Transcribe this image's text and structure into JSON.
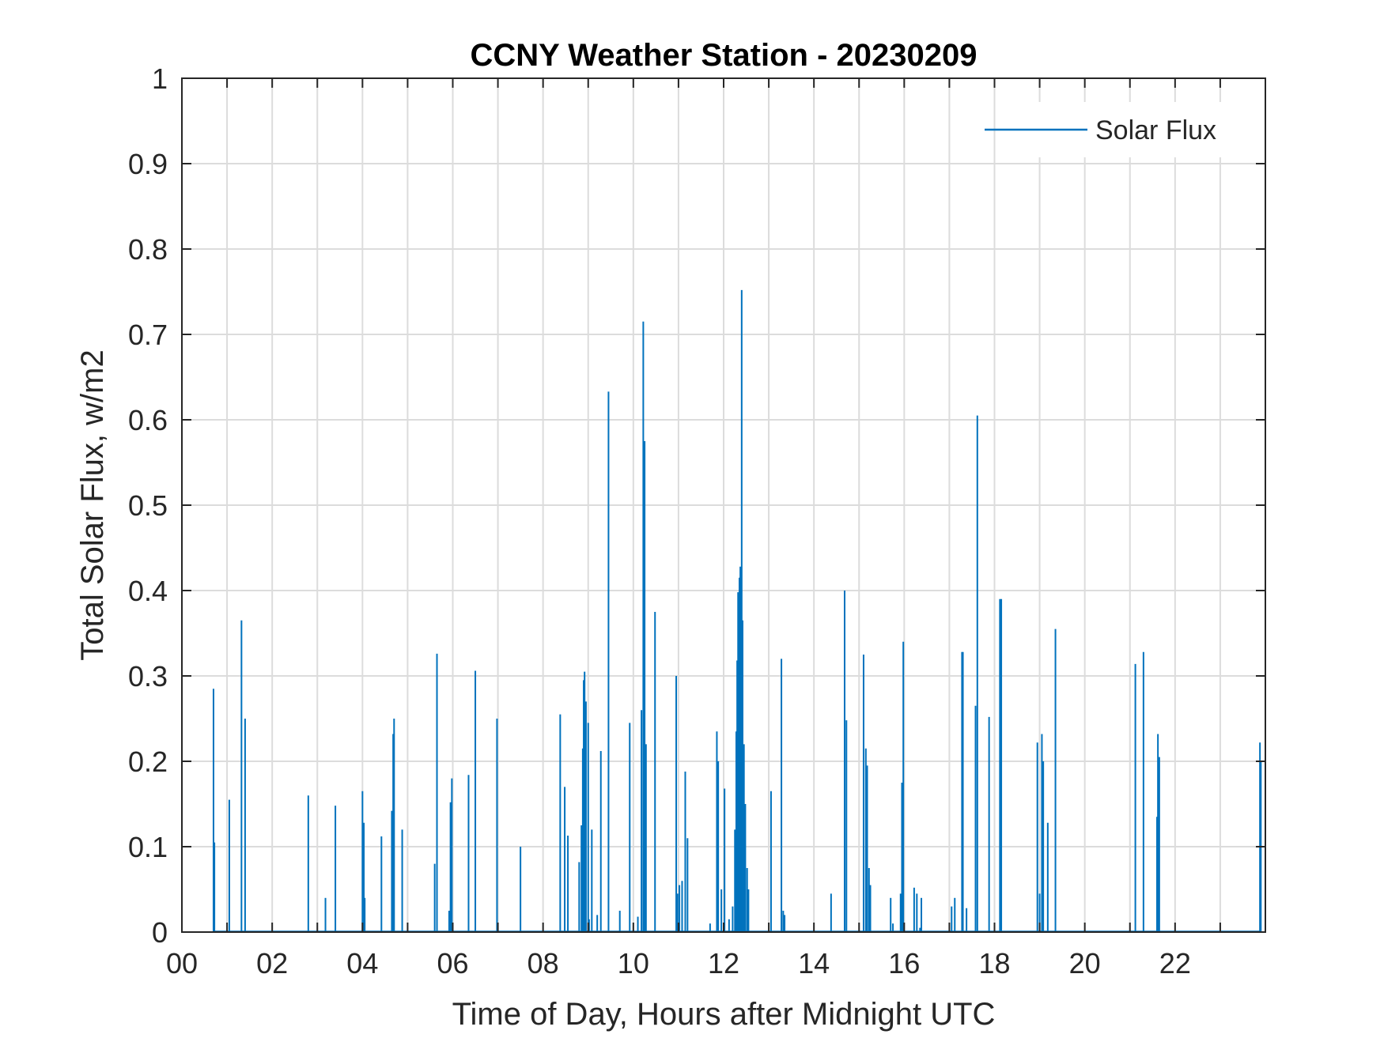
{
  "chart_data": {
    "type": "line",
    "title": "CCNY Weather Station - 20230209",
    "xlabel": "Time of Day, Hours after Midnight UTC",
    "ylabel": "Total Solar Flux, w/m2",
    "xlim": [
      0,
      24
    ],
    "ylim": [
      0,
      1
    ],
    "grid": true,
    "legend_position": "top-right",
    "x_ticks": [
      0,
      2,
      4,
      6,
      8,
      10,
      12,
      14,
      16,
      18,
      20,
      22
    ],
    "x_tick_labels": [
      "00",
      "02",
      "04",
      "06",
      "08",
      "10",
      "12",
      "14",
      "16",
      "18",
      "20",
      "22"
    ],
    "y_ticks": [
      0,
      0.1,
      0.2,
      0.3,
      0.4,
      0.5,
      0.6,
      0.7,
      0.8,
      0.9,
      1
    ],
    "y_tick_labels": [
      "0",
      "0.1",
      "0.2",
      "0.3",
      "0.4",
      "0.5",
      "0.6",
      "0.7",
      "0.8",
      "0.9",
      "1"
    ],
    "series": [
      {
        "name": "Solar Flux",
        "color": "#0072BD",
        "spikes": [
          [
            0.7,
            0.285
          ],
          [
            0.72,
            0.105
          ],
          [
            1.05,
            0.155
          ],
          [
            1.32,
            0.365
          ],
          [
            1.4,
            0.25
          ],
          [
            2.8,
            0.16
          ],
          [
            3.18,
            0.04
          ],
          [
            3.4,
            0.148
          ],
          [
            4.0,
            0.165
          ],
          [
            4.03,
            0.128
          ],
          [
            4.05,
            0.04
          ],
          [
            4.42,
            0.112
          ],
          [
            4.65,
            0.142
          ],
          [
            4.68,
            0.232
          ],
          [
            4.7,
            0.25
          ],
          [
            4.88,
            0.12
          ],
          [
            5.6,
            0.08
          ],
          [
            5.65,
            0.326
          ],
          [
            5.92,
            0.025
          ],
          [
            5.95,
            0.152
          ],
          [
            5.98,
            0.18
          ],
          [
            6.35,
            0.184
          ],
          [
            6.5,
            0.306
          ],
          [
            6.98,
            0.25
          ],
          [
            7.5,
            0.1
          ],
          [
            8.38,
            0.255
          ],
          [
            8.48,
            0.17
          ],
          [
            8.55,
            0.113
          ],
          [
            8.8,
            0.082
          ],
          [
            8.85,
            0.125
          ],
          [
            8.88,
            0.215
          ],
          [
            8.9,
            0.295
          ],
          [
            8.92,
            0.305
          ],
          [
            8.95,
            0.27
          ],
          [
            9.0,
            0.245
          ],
          [
            9.02,
            0.015
          ],
          [
            9.08,
            0.12
          ],
          [
            9.2,
            0.02
          ],
          [
            9.28,
            0.212
          ],
          [
            9.45,
            0.633
          ],
          [
            9.7,
            0.025
          ],
          [
            9.92,
            0.245
          ],
          [
            10.1,
            0.018
          ],
          [
            10.18,
            0.26
          ],
          [
            10.22,
            0.715
          ],
          [
            10.25,
            0.575
          ],
          [
            10.28,
            0.22
          ],
          [
            10.48,
            0.375
          ],
          [
            10.95,
            0.3
          ],
          [
            10.98,
            0.045
          ],
          [
            11.02,
            0.055
          ],
          [
            11.08,
            0.06
          ],
          [
            11.15,
            0.188
          ],
          [
            11.2,
            0.11
          ],
          [
            11.7,
            0.01
          ],
          [
            11.85,
            0.235
          ],
          [
            11.88,
            0.2
          ],
          [
            11.95,
            0.05
          ],
          [
            12.02,
            0.168
          ],
          [
            12.12,
            0.015
          ],
          [
            12.2,
            0.03
          ],
          [
            12.25,
            0.12
          ],
          [
            12.28,
            0.235
          ],
          [
            12.3,
            0.318
          ],
          [
            12.32,
            0.398
          ],
          [
            12.35,
            0.415
          ],
          [
            12.37,
            0.428
          ],
          [
            12.4,
            0.752
          ],
          [
            12.42,
            0.365
          ],
          [
            12.45,
            0.22
          ],
          [
            12.48,
            0.15
          ],
          [
            12.52,
            0.075
          ],
          [
            12.55,
            0.05
          ],
          [
            13.05,
            0.165
          ],
          [
            13.28,
            0.32
          ],
          [
            13.32,
            0.025
          ],
          [
            13.35,
            0.02
          ],
          [
            14.38,
            0.045
          ],
          [
            14.68,
            0.4
          ],
          [
            14.72,
            0.248
          ],
          [
            15.1,
            0.325
          ],
          [
            15.15,
            0.215
          ],
          [
            15.18,
            0.195
          ],
          [
            15.22,
            0.075
          ],
          [
            15.25,
            0.055
          ],
          [
            15.7,
            0.04
          ],
          [
            15.75,
            0.01
          ],
          [
            15.92,
            0.045
          ],
          [
            15.95,
            0.175
          ],
          [
            15.98,
            0.34
          ],
          [
            16.22,
            0.052
          ],
          [
            16.28,
            0.045
          ],
          [
            16.35,
            0.005
          ],
          [
            16.38,
            0.04
          ],
          [
            17.05,
            0.03
          ],
          [
            17.12,
            0.04
          ],
          [
            17.28,
            0.328
          ],
          [
            17.3,
            0.328
          ],
          [
            17.38,
            0.028
          ],
          [
            17.58,
            0.265
          ],
          [
            17.62,
            0.605
          ],
          [
            17.88,
            0.252
          ],
          [
            18.12,
            0.39
          ],
          [
            18.15,
            0.39
          ],
          [
            18.95,
            0.222
          ],
          [
            19.0,
            0.045
          ],
          [
            19.05,
            0.232
          ],
          [
            19.08,
            0.2
          ],
          [
            19.18,
            0.128
          ],
          [
            19.35,
            0.355
          ],
          [
            21.12,
            0.314
          ],
          [
            21.3,
            0.328
          ],
          [
            21.6,
            0.135
          ],
          [
            21.62,
            0.232
          ],
          [
            21.65,
            0.205
          ],
          [
            23.88,
            0.222
          ],
          [
            23.9,
            0.2
          ]
        ]
      }
    ]
  }
}
